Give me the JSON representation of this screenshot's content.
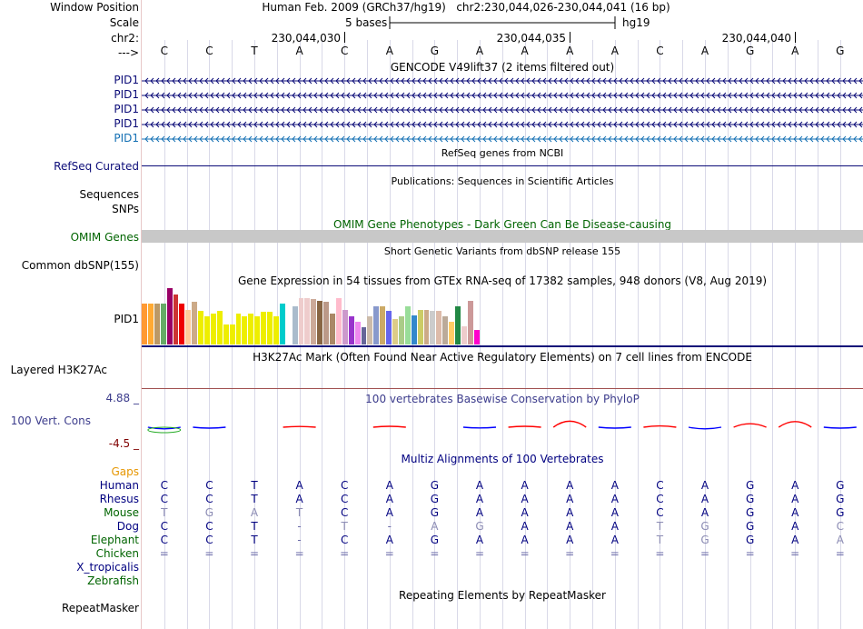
{
  "header": {
    "window_position_label": "Window Position",
    "scale_label": "Scale",
    "chr_label": "chr2:",
    "strand_label": "--->",
    "assembly": "Human Feb. 2009 (GRCh37/hg19)",
    "position": "chr2:230,044,026-230,044,041 (16 bp)",
    "scale_text": "5 bases",
    "scale_assembly": "hg19",
    "ticks": [
      "230,044,030",
      "230,044,035",
      "230,044,040"
    ]
  },
  "sequence": [
    "C",
    "C",
    "T",
    "A",
    "C",
    "A",
    "G",
    "A",
    "A",
    "A",
    "A",
    "C",
    "A",
    "G",
    "A",
    "G"
  ],
  "tracks": {
    "gencode": {
      "title": "GENCODE V49lift37 (2 items filtered out)",
      "items": [
        "PID1",
        "PID1",
        "PID1",
        "PID1",
        "PID1"
      ]
    },
    "refseq": {
      "title": "RefSeq genes from NCBI",
      "label": "RefSeq Curated"
    },
    "publications": {
      "title": "Publications: Sequences in Scientific Articles",
      "label": "Sequences"
    },
    "snps": {
      "label": "SNPs"
    },
    "omim": {
      "title": "OMIM Gene Phenotypes - Dark Green Can Be Disease-causing",
      "label": "OMIM Genes"
    },
    "dbsnp": {
      "title": "Short Genetic Variants from dbSNP release 155",
      "label": "Common dbSNP(155)"
    },
    "gtex": {
      "title": "Gene Expression in 54 tissues from GTEx RNA-seq of 17382 samples, 948 donors (V8, Aug 2019)",
      "label": "PID1",
      "values": [
        0.72,
        0.72,
        0.72,
        0.72,
        1.0,
        0.88,
        0.72,
        0.62,
        0.76,
        0.6,
        0.5,
        0.55,
        0.6,
        0.35,
        0.35,
        0.55,
        0.5,
        0.55,
        0.5,
        0.58,
        0.58,
        0.5,
        0.72,
        0.0,
        0.68,
        0.82,
        0.82,
        0.8,
        0.78,
        0.75,
        0.55,
        0.82,
        0.62,
        0.5,
        0.4,
        0.3,
        0.5,
        0.68,
        0.68,
        0.6,
        0.45,
        0.5,
        0.68,
        0.52,
        0.62,
        0.62,
        0.6,
        0.6,
        0.5,
        0.4,
        0.68,
        0.32,
        0.78,
        0.25
      ],
      "colors": [
        "#FF9933",
        "#FFAA33",
        "#BB9966",
        "#66AA66",
        "#990066",
        "#CC3333",
        "#EE0000",
        "#FFCC99",
        "#CCAA88",
        "#EEEE00",
        "#EEEE00",
        "#EEEE00",
        "#EEEE00",
        "#EEEE00",
        "#EEEE00",
        "#EEEE00",
        "#EEEE00",
        "#EEEE00",
        "#EEEE00",
        "#EEEE00",
        "#EEEE00",
        "#EEEE00",
        "#00CCCC",
        "#FFFFFF",
        "#AABBCC",
        "#EECCCC",
        "#EECCCC",
        "#CCAA99",
        "#886644",
        "#BB9988",
        "#AA8866",
        "#FFBBCC",
        "#CC99CC",
        "#9933CC",
        "#EE88EE",
        "#666699",
        "#CCBBAA",
        "#8899CC",
        "#CCAA66",
        "#6666EE",
        "#DDCC88",
        "#AACC88",
        "#99DD99",
        "#3388CC",
        "#CCCC66",
        "#CCAA88",
        "#CCCCCC",
        "#DDBBAA",
        "#BBAA99",
        "#FFCC66",
        "#228844",
        "#EECCCC",
        "#CC9999",
        "#FF00CC"
      ]
    },
    "h3k27ac": {
      "title": "H3K27Ac Mark (Often Found Near Active Regulatory Elements) on 7 cell lines from ENCODE",
      "label": "Layered H3K27Ac"
    },
    "phylop": {
      "title": "100 vertebrates Basewise Conservation by PhyloP",
      "label": "100 Vert. Cons",
      "ymax": "4.88 _",
      "ymin": "-4.5 _",
      "values": [
        -0.3,
        -0.1,
        0,
        0.05,
        0,
        0.1,
        0,
        -0.05,
        0.1,
        1.5,
        -0.1,
        0.2,
        -0.3,
        0.8,
        1.4,
        -0.1
      ]
    },
    "multiz": {
      "title": "Multiz Alignments of 100 Vertebrates",
      "gaps_label": "Gaps",
      "species": [
        {
          "name": "Human",
          "color": "#000080",
          "seq": [
            "C",
            "C",
            "T",
            "A",
            "C",
            "A",
            "G",
            "A",
            "A",
            "A",
            "A",
            "C",
            "A",
            "G",
            "A",
            "G"
          ]
        },
        {
          "name": "Rhesus",
          "color": "#000080",
          "seq": [
            "C",
            "C",
            "T",
            "A",
            "C",
            "A",
            "G",
            "A",
            "A",
            "A",
            "A",
            "C",
            "A",
            "G",
            "A",
            "G"
          ]
        },
        {
          "name": "Mouse",
          "color": "#006400",
          "seq": [
            "T",
            "G",
            "A",
            "T",
            "C",
            "A",
            "G",
            "A",
            "A",
            "A",
            "A",
            "C",
            "A",
            "G",
            "A",
            "G"
          ]
        },
        {
          "name": "Dog",
          "color": "#000080",
          "seq": [
            "C",
            "C",
            "T",
            "-",
            "T",
            "-",
            "A",
            "G",
            "A",
            "A",
            "A",
            "T",
            "G",
            "G",
            "A",
            "C"
          ]
        },
        {
          "name": "Elephant",
          "color": "#006400",
          "seq": [
            "C",
            "C",
            "T",
            "-",
            "C",
            "A",
            "G",
            "A",
            "A",
            "A",
            "A",
            "T",
            "G",
            "G",
            "A",
            "A"
          ]
        },
        {
          "name": "Chicken",
          "color": "#006400",
          "seq": [
            "=",
            "=",
            "=",
            "=",
            "=",
            "=",
            "=",
            "=",
            "=",
            "=",
            "=",
            "=",
            "=",
            "=",
            "=",
            "="
          ]
        },
        {
          "name": "X_tropicalis",
          "color": "#000080",
          "seq": []
        },
        {
          "name": "Zebrafish",
          "color": "#006400",
          "seq": []
        }
      ]
    },
    "repeatmasker": {
      "title": "Repeating Elements by RepeatMasker",
      "label": "RepeatMasker"
    }
  },
  "colors": {
    "navy": "#000080",
    "gencode_blue": "#0C0C78",
    "gencode_light": "#1470B4",
    "omim_green": "#006400",
    "omim_bar": "#C8C8C8",
    "gaps_orange": "#E69600",
    "phylop_title": "#3C3C8C",
    "phylop_min": "#800000",
    "conserved": "#0000FF",
    "accelerated": "#FF0000"
  }
}
